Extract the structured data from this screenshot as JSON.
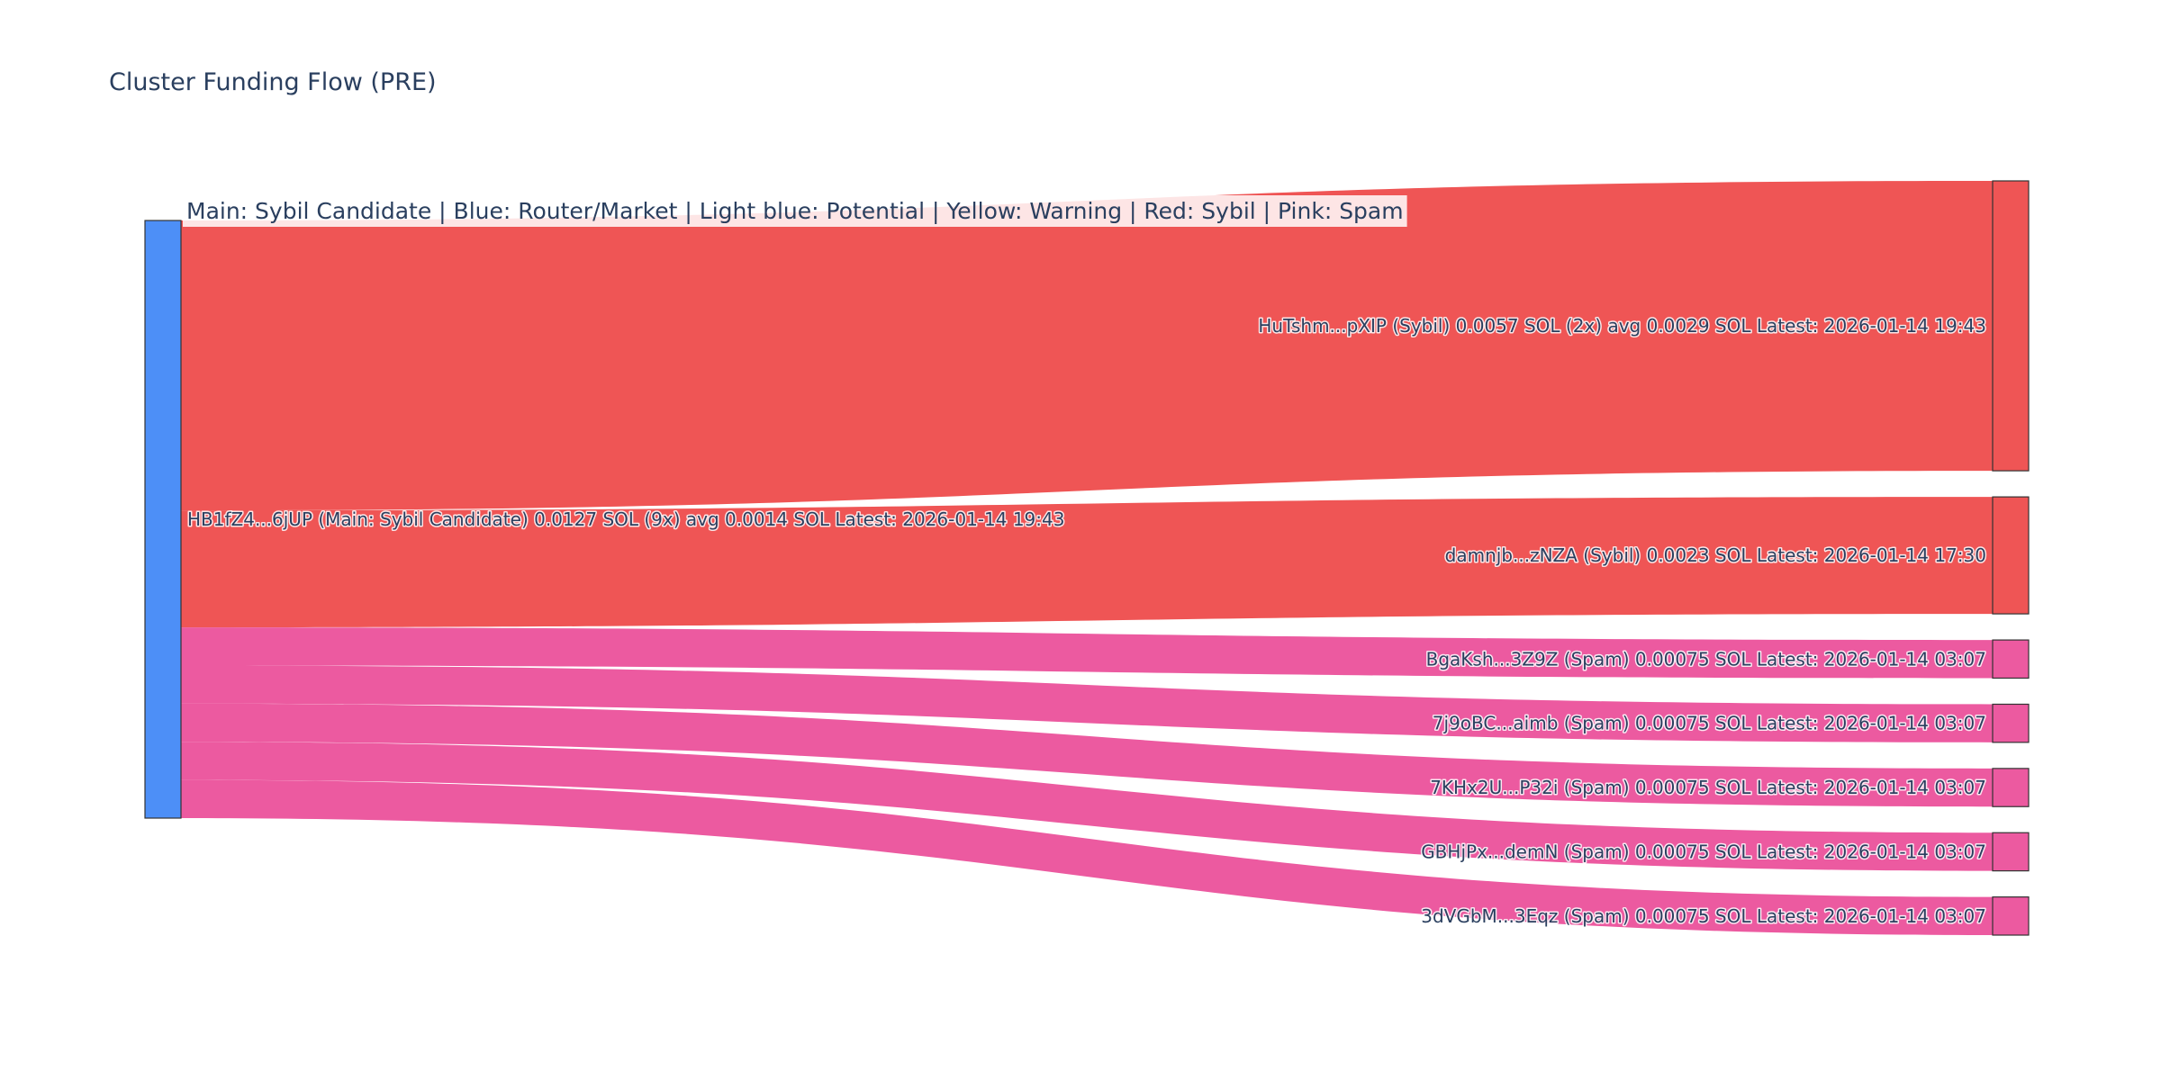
{
  "chart_data": {
    "type": "sankey",
    "title": "Cluster Funding Flow (PRE)",
    "legend_annotation": "Main: Sybil Candidate  |  Blue: Router/Market | Light blue: Potential | Yellow: Warning | Red: Sybil | Pink: Spam",
    "colors": {
      "source_node": "#4d8ff7",
      "sybil": "#ef5555",
      "spam": "#ec5aa0",
      "title": "#2a3f5f",
      "node_border": "#333333"
    },
    "source": {
      "label": "HB1fZ4...6jUP (Main: Sybil Candidate) 0.0127 SOL (9x) avg 0.0014 SOL Latest: 2026-01-14 19:43",
      "category": "main",
      "value": 0.0127
    },
    "targets": [
      {
        "label": "HuTshm...pXIP (Sybil) 0.0057 SOL (2x) avg 0.0029 SOL Latest: 2026-01-14 19:43",
        "category": "sybil",
        "value": 0.0057
      },
      {
        "label": "damnjb...zNZA (Sybil) 0.0023 SOL Latest: 2026-01-14 17:30",
        "category": "sybil",
        "value": 0.0023
      },
      {
        "label": "BgaKsh...3Z9Z (Spam) 0.00075 SOL Latest: 2026-01-14 03:07",
        "category": "spam",
        "value": 0.00075
      },
      {
        "label": "7j9oBC...aimb (Spam) 0.00075 SOL Latest: 2026-01-14 03:07",
        "category": "spam",
        "value": 0.00075
      },
      {
        "label": "7KHx2U...P32i (Spam) 0.00075 SOL Latest: 2026-01-14 03:07",
        "category": "spam",
        "value": 0.00075
      },
      {
        "label": "GBHjPx...demN (Spam) 0.00075 SOL Latest: 2026-01-14 03:07",
        "category": "spam",
        "value": 0.00075
      },
      {
        "label": "3dVGbM...3Eqz (Spam) 0.00075 SOL Latest: 2026-01-14 03:07",
        "category": "spam",
        "value": 0.00075
      }
    ]
  }
}
